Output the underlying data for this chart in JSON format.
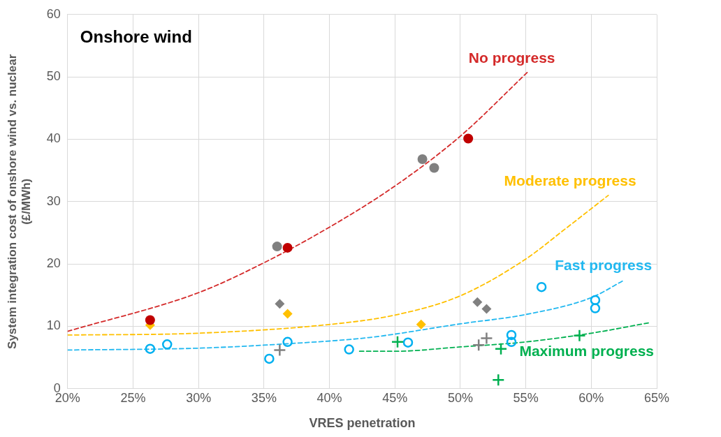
{
  "chart_data": {
    "type": "scatter",
    "title": "Onshore wind",
    "xlabel": "VRES penetration",
    "ylabel": "System integration cost of onshore wind vs. nuclear\n(£/MWh)",
    "xlim": [
      20,
      65
    ],
    "xticks": [
      {
        "value": 20,
        "label": "20%"
      },
      {
        "value": 25,
        "label": "25%"
      },
      {
        "value": 30,
        "label": "30%"
      },
      {
        "value": 35,
        "label": "35%"
      },
      {
        "value": 40,
        "label": "40%"
      },
      {
        "value": 45,
        "label": "45%"
      },
      {
        "value": 50,
        "label": "50%"
      },
      {
        "value": 55,
        "label": "55%"
      },
      {
        "value": 60,
        "label": "60%"
      },
      {
        "value": 65,
        "label": "65%"
      }
    ],
    "ylim": [
      0,
      60
    ],
    "yticks": [
      0,
      10,
      20,
      30,
      40,
      50,
      60
    ],
    "grid": true,
    "series": [
      {
        "marker": "circle",
        "color": "#808080",
        "x": [
          36.0,
          47.1,
          48.0
        ],
        "values": [
          22.8,
          36.8,
          35.4
        ]
      },
      {
        "marker": "circle",
        "color": "#c00000",
        "x": [
          26.3,
          36.8,
          50.6
        ],
        "values": [
          11.0,
          22.6,
          40.1
        ]
      },
      {
        "marker": "diamond",
        "color": "#808080",
        "x": [
          36.2,
          51.3,
          52.0
        ],
        "values": [
          13.6,
          13.9,
          12.8
        ]
      },
      {
        "marker": "diamond",
        "color": "#ffc000",
        "x": [
          26.3,
          36.8,
          47.0
        ],
        "values": [
          10.2,
          12.0,
          10.3
        ]
      },
      {
        "marker": "open circle",
        "color": "#00b0f0",
        "x": [
          26.3,
          27.6,
          35.4,
          36.8,
          41.5,
          46.0,
          53.9,
          53.9,
          56.2,
          60.3,
          60.3
        ],
        "values": [
          6.4,
          7.1,
          4.8,
          7.5,
          6.3,
          7.4,
          8.6,
          7.5,
          16.3,
          14.2,
          12.9
        ]
      },
      {
        "marker": "cross",
        "color": "#808080",
        "x": [
          36.2,
          51.4,
          52.0
        ],
        "values": [
          6.2,
          7.0,
          8.1
        ]
      },
      {
        "marker": "cross",
        "color": "#00b050",
        "x": [
          45.2,
          53.1,
          52.9,
          59.1
        ],
        "values": [
          7.5,
          6.4,
          1.4,
          8.5
        ]
      },
      {
        "type": "line",
        "name": "No progress",
        "marker": "none",
        "line_style": "dashed",
        "color": "#d42a2a",
        "x": [
          20,
          30,
          35,
          40,
          45,
          50,
          55.1
        ],
        "values": [
          9.2,
          15.4,
          20.2,
          25.9,
          32.5,
          40.5,
          50.7
        ]
      },
      {
        "type": "line",
        "name": "Moderate progress",
        "marker": "none",
        "line_style": "dashed",
        "color": "#ffc000",
        "x": [
          20,
          30,
          40,
          45,
          50,
          55,
          58,
          61.3
        ],
        "values": [
          8.6,
          8.9,
          10.3,
          11.8,
          14.9,
          20.8,
          25.6,
          31.0
        ]
      },
      {
        "type": "line",
        "name": "Fast progress",
        "marker": "none",
        "line_style": "dashed",
        "color": "#22b8f0",
        "x": [
          20,
          30,
          36.7,
          43,
          50,
          55,
          60,
          62.5
        ],
        "values": [
          6.2,
          6.5,
          7.2,
          8.2,
          10.4,
          11.9,
          14.6,
          17.4
        ]
      },
      {
        "type": "line",
        "name": "Maximum progress",
        "marker": "none",
        "line_style": "dashed",
        "color": "#00b050",
        "x": [
          42.3,
          45,
          50,
          55,
          60,
          64.5
        ],
        "values": [
          6.0,
          6.0,
          6.7,
          7.5,
          8.9,
          10.6
        ]
      }
    ]
  }
}
